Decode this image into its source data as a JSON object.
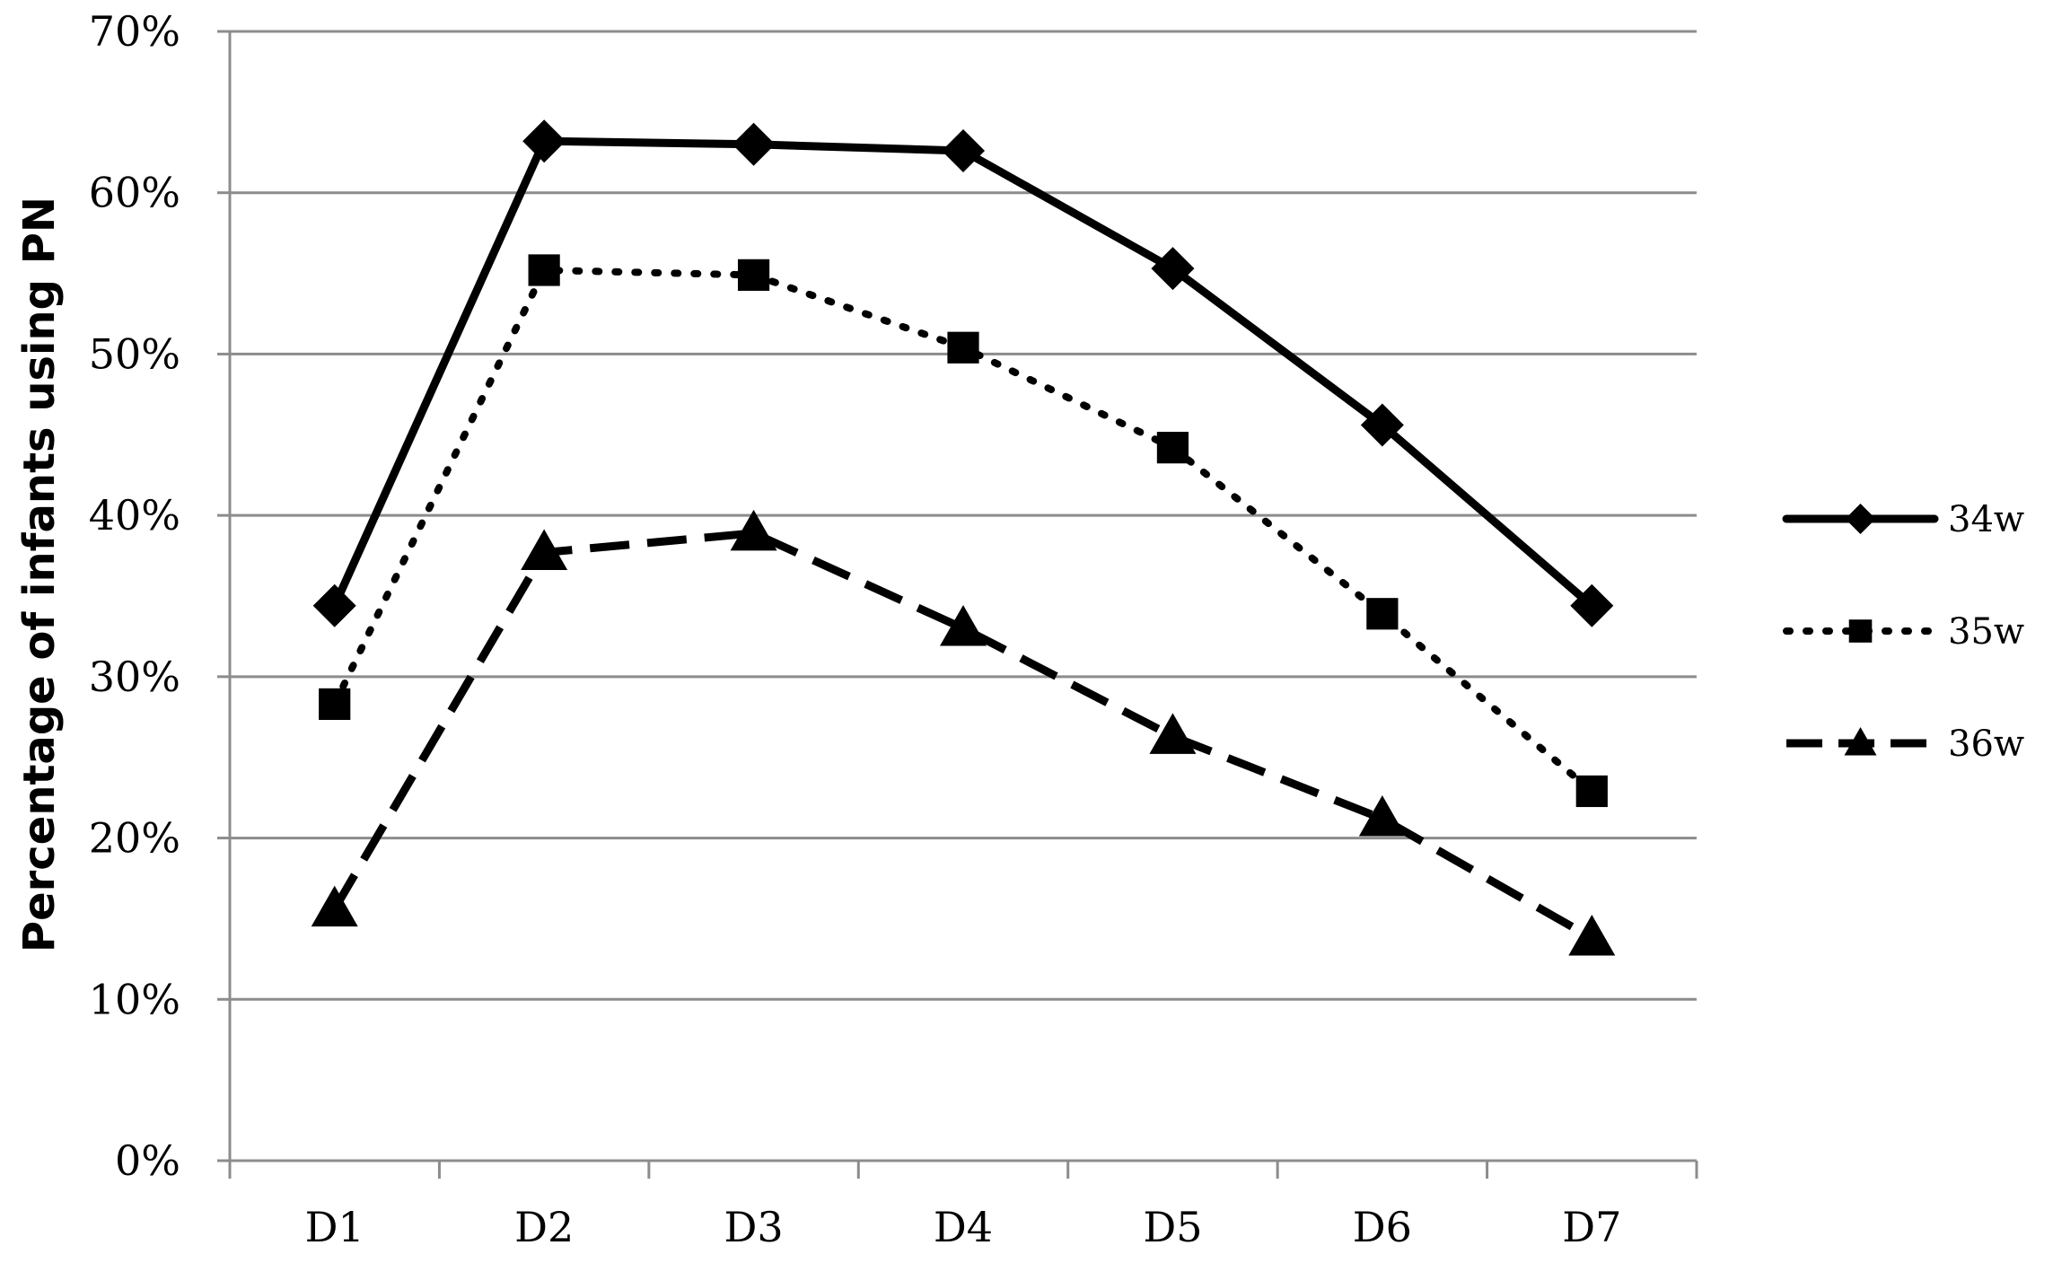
{
  "chart_data": {
    "type": "line",
    "title": "",
    "xlabel": "",
    "ylabel": "Percentage of infants using PN",
    "categories": [
      "D1",
      "D2",
      "D3",
      "D4",
      "D5",
      "D6",
      "D7"
    ],
    "y_ticks": [
      "0%",
      "10%",
      "20%",
      "30%",
      "40%",
      "50%",
      "60%",
      "70%"
    ],
    "ylim": [
      0,
      70
    ],
    "grid": true,
    "legend_position": "right",
    "series": [
      {
        "name": "34w",
        "values": [
          34.4,
          63.2,
          63.0,
          62.6,
          55.3,
          45.6,
          34.4
        ],
        "marker": "diamond",
        "line_style": "solid",
        "color": "#000000"
      },
      {
        "name": "35w",
        "values": [
          28.3,
          55.2,
          54.9,
          50.4,
          44.2,
          33.9,
          22.9
        ],
        "marker": "square",
        "line_style": "dotted",
        "color": "#000000"
      },
      {
        "name": "36w",
        "values": [
          15.6,
          37.7,
          38.9,
          33.0,
          26.3,
          21.2,
          13.8
        ],
        "marker": "triangle",
        "line_style": "dashed",
        "color": "#000000"
      }
    ],
    "colors": {
      "gridline": "#8c8c8c",
      "axis": "#8c8c8c",
      "text": "#000000"
    }
  }
}
